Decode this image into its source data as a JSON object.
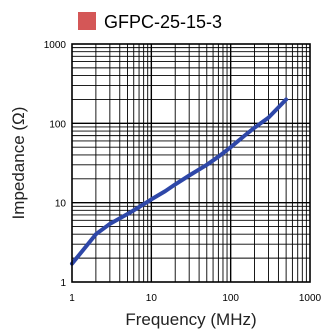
{
  "chart_data": {
    "type": "line",
    "legend_position": "top",
    "grid": true,
    "x_scale": "log",
    "y_scale": "log",
    "xlabel": "Frequency (MHz)",
    "ylabel": "Impedance (Ω)",
    "xlim": [
      1,
      1000
    ],
    "ylim": [
      1,
      1000
    ],
    "x_ticks": [
      1,
      10,
      100,
      1000
    ],
    "x_tick_labels": [
      "1",
      "10",
      "100",
      "1000"
    ],
    "y_ticks": [
      1,
      10,
      100,
      1000
    ],
    "y_tick_labels": [
      "1",
      "10",
      "100",
      "1000"
    ],
    "series": [
      {
        "name": "GFPC-25-15-3",
        "color": "#2E47A8",
        "legend_color": "#D45757",
        "x": [
          1,
          1.5,
          2,
          3,
          5,
          7,
          10,
          15,
          20,
          30,
          50,
          70,
          100,
          150,
          200,
          300,
          500
        ],
        "y": [
          1.7,
          2.8,
          4,
          5.4,
          7.2,
          8.8,
          11,
          14,
          17,
          22,
          30,
          38,
          50,
          70,
          88,
          118,
          200
        ]
      }
    ]
  }
}
